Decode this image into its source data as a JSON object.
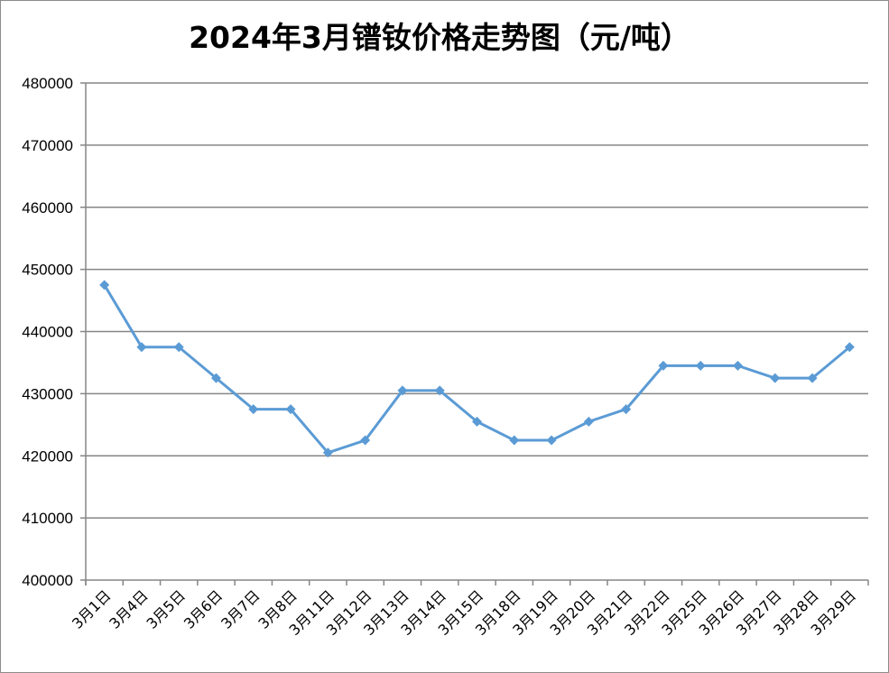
{
  "chart_data": {
    "type": "line",
    "title": "2024年3月镨钕价格走势图（元/吨）",
    "xlabel": "",
    "ylabel": "",
    "ylim": [
      400000,
      480000
    ],
    "y_ticks": [
      400000,
      410000,
      420000,
      430000,
      440000,
      450000,
      460000,
      470000,
      480000
    ],
    "grid": true,
    "legend": "none",
    "categories": [
      "3月1日",
      "3月4日",
      "3月5日",
      "3月6日",
      "3月7日",
      "3月8日",
      "3月11日",
      "3月12日",
      "3月13日",
      "3月14日",
      "3月15日",
      "3月18日",
      "3月19日",
      "3月20日",
      "3月21日",
      "3月22日",
      "3月25日",
      "3月26日",
      "3月27日",
      "3月28日",
      "3月29日"
    ],
    "series": [
      {
        "values": [
          447500,
          437500,
          437500,
          432500,
          427500,
          427500,
          420500,
          422500,
          430500,
          430500,
          425500,
          422500,
          422500,
          425500,
          427500,
          434500,
          434500,
          434500,
          432500,
          432500,
          437500
        ],
        "color": "#5b9bd5"
      }
    ]
  }
}
